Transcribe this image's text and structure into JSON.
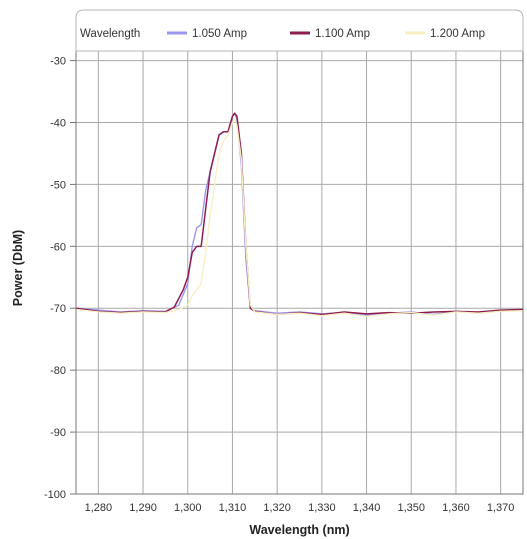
{
  "chart_data": {
    "type": "line",
    "title": "",
    "xlabel": "Wavelength (nm)",
    "ylabel": "Power (DbM)",
    "xlim": [
      1275,
      1375
    ],
    "ylim": [
      -100,
      -27
    ],
    "xticks": [
      1280,
      1290,
      1300,
      1310,
      1320,
      1330,
      1340,
      1350,
      1360,
      1370
    ],
    "xtick_labels": [
      "1,280",
      "1,290",
      "1,300",
      "1,310",
      "1,320",
      "1,330",
      "1,340",
      "1,350",
      "1,360",
      "1,370"
    ],
    "yticks": [
      -30,
      -40,
      -50,
      -60,
      -70,
      -80,
      -90,
      -100
    ],
    "ytick_labels": [
      "-30",
      "-40",
      "-50",
      "-60",
      "-70",
      "-80",
      "-90",
      "-100"
    ],
    "grid": true,
    "legend": {
      "placement": "top",
      "title": "Wavelength"
    },
    "series": [
      {
        "name": "1.050 Amp",
        "color": "#9c97ee",
        "x": [
          1275,
          1280,
          1285,
          1290,
          1295,
          1298,
          1300,
          1301,
          1302,
          1303,
          1304,
          1305,
          1306,
          1307,
          1308,
          1309,
          1310,
          1310.5,
          1311,
          1312,
          1313,
          1314,
          1315,
          1320,
          1325,
          1330,
          1335,
          1340,
          1345,
          1350,
          1355,
          1360,
          1365,
          1370,
          1375
        ],
        "y": [
          -70,
          -70.3,
          -70.6,
          -70.4,
          -70.5,
          -69.5,
          -66,
          -60,
          -57,
          -56.5,
          -51,
          -48,
          -45,
          -42,
          -41.5,
          -41.5,
          -39,
          -38.5,
          -39.5,
          -47,
          -62,
          -70,
          -70.4,
          -70.8,
          -70.6,
          -70.9,
          -70.7,
          -71.1,
          -70.8,
          -70.6,
          -71,
          -70.5,
          -70.7,
          -70.4,
          -70.3
        ]
      },
      {
        "name": "1.100 Amp",
        "color": "#8e1e4e",
        "x": [
          1275,
          1280,
          1285,
          1290,
          1295,
          1297,
          1299,
          1300,
          1301,
          1302,
          1303,
          1304,
          1305,
          1306,
          1307,
          1308,
          1309,
          1310,
          1310.5,
          1311,
          1312,
          1313,
          1314,
          1315,
          1320,
          1325,
          1330,
          1335,
          1340,
          1345,
          1350,
          1355,
          1360,
          1365,
          1370,
          1375
        ],
        "y": [
          -70,
          -70.5,
          -70.7,
          -70.5,
          -70.6,
          -69.8,
          -67,
          -65,
          -61,
          -60,
          -60,
          -54,
          -48,
          -45,
          -42,
          -41.5,
          -41.5,
          -39,
          -38.5,
          -39,
          -45,
          -60,
          -70,
          -70.5,
          -71,
          -70.7,
          -71,
          -70.6,
          -70.9,
          -70.7,
          -70.8,
          -70.6,
          -70.5,
          -70.6,
          -70.3,
          -70.2
        ]
      },
      {
        "name": "1.200 Amp",
        "color": "#f7efc4",
        "x": [
          1275,
          1280,
          1285,
          1290,
          1295,
          1298,
          1300,
          1301,
          1302,
          1303,
          1304,
          1305,
          1306,
          1307,
          1308,
          1309,
          1310,
          1310.5,
          1311,
          1312,
          1313,
          1314,
          1315,
          1320,
          1325,
          1330,
          1335,
          1340,
          1345,
          1350,
          1355,
          1360,
          1365,
          1370,
          1375
        ],
        "y": [
          -70.2,
          -70.6,
          -70.8,
          -70.6,
          -70.7,
          -70.2,
          -69.5,
          -68,
          -67,
          -66,
          -61,
          -55,
          -50,
          -45,
          -43,
          -42,
          -40,
          -39.5,
          -40.5,
          -46,
          -60,
          -69.5,
          -70.6,
          -71,
          -70.8,
          -71.2,
          -70.8,
          -71.3,
          -70.9,
          -70.7,
          -71.1,
          -70.6,
          -70.8,
          -70.5,
          -70.4
        ]
      }
    ]
  }
}
